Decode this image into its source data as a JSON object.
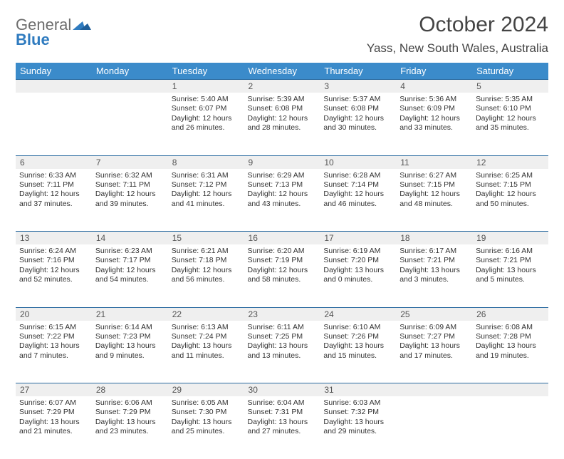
{
  "logo": {
    "line1": "General",
    "line2": "Blue"
  },
  "title": "October 2024",
  "location": "Yass, New South Wales, Australia",
  "colors": {
    "header_bg": "#3b8bca",
    "header_text": "#ffffff",
    "daynum_bg": "#efefef",
    "rule": "#2a6aa0",
    "text": "#333333",
    "logo_gray": "#6d6d6d",
    "logo_blue": "#2f7bbf"
  },
  "weekdays": [
    "Sunday",
    "Monday",
    "Tuesday",
    "Wednesday",
    "Thursday",
    "Friday",
    "Saturday"
  ],
  "weeks": [
    [
      null,
      null,
      {
        "n": "1",
        "sr": "Sunrise: 5:40 AM",
        "ss": "Sunset: 6:07 PM",
        "d1": "Daylight: 12 hours",
        "d2": "and 26 minutes."
      },
      {
        "n": "2",
        "sr": "Sunrise: 5:39 AM",
        "ss": "Sunset: 6:08 PM",
        "d1": "Daylight: 12 hours",
        "d2": "and 28 minutes."
      },
      {
        "n": "3",
        "sr": "Sunrise: 5:37 AM",
        "ss": "Sunset: 6:08 PM",
        "d1": "Daylight: 12 hours",
        "d2": "and 30 minutes."
      },
      {
        "n": "4",
        "sr": "Sunrise: 5:36 AM",
        "ss": "Sunset: 6:09 PM",
        "d1": "Daylight: 12 hours",
        "d2": "and 33 minutes."
      },
      {
        "n": "5",
        "sr": "Sunrise: 5:35 AM",
        "ss": "Sunset: 6:10 PM",
        "d1": "Daylight: 12 hours",
        "d2": "and 35 minutes."
      }
    ],
    [
      {
        "n": "6",
        "sr": "Sunrise: 6:33 AM",
        "ss": "Sunset: 7:11 PM",
        "d1": "Daylight: 12 hours",
        "d2": "and 37 minutes."
      },
      {
        "n": "7",
        "sr": "Sunrise: 6:32 AM",
        "ss": "Sunset: 7:11 PM",
        "d1": "Daylight: 12 hours",
        "d2": "and 39 minutes."
      },
      {
        "n": "8",
        "sr": "Sunrise: 6:31 AM",
        "ss": "Sunset: 7:12 PM",
        "d1": "Daylight: 12 hours",
        "d2": "and 41 minutes."
      },
      {
        "n": "9",
        "sr": "Sunrise: 6:29 AM",
        "ss": "Sunset: 7:13 PM",
        "d1": "Daylight: 12 hours",
        "d2": "and 43 minutes."
      },
      {
        "n": "10",
        "sr": "Sunrise: 6:28 AM",
        "ss": "Sunset: 7:14 PM",
        "d1": "Daylight: 12 hours",
        "d2": "and 46 minutes."
      },
      {
        "n": "11",
        "sr": "Sunrise: 6:27 AM",
        "ss": "Sunset: 7:15 PM",
        "d1": "Daylight: 12 hours",
        "d2": "and 48 minutes."
      },
      {
        "n": "12",
        "sr": "Sunrise: 6:25 AM",
        "ss": "Sunset: 7:15 PM",
        "d1": "Daylight: 12 hours",
        "d2": "and 50 minutes."
      }
    ],
    [
      {
        "n": "13",
        "sr": "Sunrise: 6:24 AM",
        "ss": "Sunset: 7:16 PM",
        "d1": "Daylight: 12 hours",
        "d2": "and 52 minutes."
      },
      {
        "n": "14",
        "sr": "Sunrise: 6:23 AM",
        "ss": "Sunset: 7:17 PM",
        "d1": "Daylight: 12 hours",
        "d2": "and 54 minutes."
      },
      {
        "n": "15",
        "sr": "Sunrise: 6:21 AM",
        "ss": "Sunset: 7:18 PM",
        "d1": "Daylight: 12 hours",
        "d2": "and 56 minutes."
      },
      {
        "n": "16",
        "sr": "Sunrise: 6:20 AM",
        "ss": "Sunset: 7:19 PM",
        "d1": "Daylight: 12 hours",
        "d2": "and 58 minutes."
      },
      {
        "n": "17",
        "sr": "Sunrise: 6:19 AM",
        "ss": "Sunset: 7:20 PM",
        "d1": "Daylight: 13 hours",
        "d2": "and 0 minutes."
      },
      {
        "n": "18",
        "sr": "Sunrise: 6:17 AM",
        "ss": "Sunset: 7:21 PM",
        "d1": "Daylight: 13 hours",
        "d2": "and 3 minutes."
      },
      {
        "n": "19",
        "sr": "Sunrise: 6:16 AM",
        "ss": "Sunset: 7:21 PM",
        "d1": "Daylight: 13 hours",
        "d2": "and 5 minutes."
      }
    ],
    [
      {
        "n": "20",
        "sr": "Sunrise: 6:15 AM",
        "ss": "Sunset: 7:22 PM",
        "d1": "Daylight: 13 hours",
        "d2": "and 7 minutes."
      },
      {
        "n": "21",
        "sr": "Sunrise: 6:14 AM",
        "ss": "Sunset: 7:23 PM",
        "d1": "Daylight: 13 hours",
        "d2": "and 9 minutes."
      },
      {
        "n": "22",
        "sr": "Sunrise: 6:13 AM",
        "ss": "Sunset: 7:24 PM",
        "d1": "Daylight: 13 hours",
        "d2": "and 11 minutes."
      },
      {
        "n": "23",
        "sr": "Sunrise: 6:11 AM",
        "ss": "Sunset: 7:25 PM",
        "d1": "Daylight: 13 hours",
        "d2": "and 13 minutes."
      },
      {
        "n": "24",
        "sr": "Sunrise: 6:10 AM",
        "ss": "Sunset: 7:26 PM",
        "d1": "Daylight: 13 hours",
        "d2": "and 15 minutes."
      },
      {
        "n": "25",
        "sr": "Sunrise: 6:09 AM",
        "ss": "Sunset: 7:27 PM",
        "d1": "Daylight: 13 hours",
        "d2": "and 17 minutes."
      },
      {
        "n": "26",
        "sr": "Sunrise: 6:08 AM",
        "ss": "Sunset: 7:28 PM",
        "d1": "Daylight: 13 hours",
        "d2": "and 19 minutes."
      }
    ],
    [
      {
        "n": "27",
        "sr": "Sunrise: 6:07 AM",
        "ss": "Sunset: 7:29 PM",
        "d1": "Daylight: 13 hours",
        "d2": "and 21 minutes."
      },
      {
        "n": "28",
        "sr": "Sunrise: 6:06 AM",
        "ss": "Sunset: 7:29 PM",
        "d1": "Daylight: 13 hours",
        "d2": "and 23 minutes."
      },
      {
        "n": "29",
        "sr": "Sunrise: 6:05 AM",
        "ss": "Sunset: 7:30 PM",
        "d1": "Daylight: 13 hours",
        "d2": "and 25 minutes."
      },
      {
        "n": "30",
        "sr": "Sunrise: 6:04 AM",
        "ss": "Sunset: 7:31 PM",
        "d1": "Daylight: 13 hours",
        "d2": "and 27 minutes."
      },
      {
        "n": "31",
        "sr": "Sunrise: 6:03 AM",
        "ss": "Sunset: 7:32 PM",
        "d1": "Daylight: 13 hours",
        "d2": "and 29 minutes."
      },
      null,
      null
    ]
  ]
}
